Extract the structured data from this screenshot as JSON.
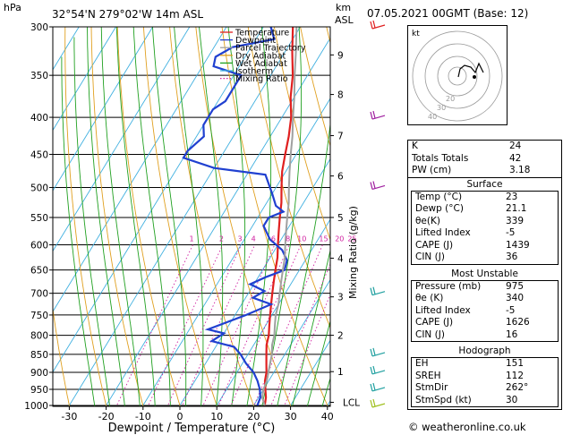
{
  "header": {
    "location": "32°54'N  279°02'W  14m  ASL",
    "hpa_label": "hPa",
    "km_label": "km",
    "asl_label": "ASL",
    "datetime": "07.05.2021  00GMT  (Base: 12)"
  },
  "chart_data": {
    "type": "line",
    "title": "32°54'N  279°02'W  14m  ASL",
    "xlabel": "Dewpoint / Temperature (°C)",
    "ylabel": "hPa",
    "right_ylabel": "Mixing Ratio (g/kg)",
    "xlim": [
      -35,
      40
    ],
    "ylim": [
      1000,
      300
    ],
    "x_ticks": [
      -30,
      -20,
      -10,
      0,
      10,
      20,
      30,
      40
    ],
    "pressure_ticks": [
      300,
      350,
      400,
      450,
      500,
      550,
      600,
      650,
      700,
      750,
      800,
      850,
      900,
      950,
      1000
    ],
    "km_ticks": [
      {
        "label": "9",
        "p": 328
      },
      {
        "label": "8",
        "p": 372
      },
      {
        "label": "7",
        "p": 424
      },
      {
        "label": "6",
        "p": 482
      },
      {
        "label": "5",
        "p": 550
      },
      {
        "label": "4",
        "p": 626
      },
      {
        "label": "3",
        "p": 708
      },
      {
        "label": "2",
        "p": 800
      },
      {
        "label": "1",
        "p": 898
      },
      {
        "label": "LCL",
        "p": 990
      }
    ],
    "mixing_ratio_labels": [
      "1",
      "2",
      "3",
      "4",
      "6",
      "8",
      "10",
      "15",
      "20",
      "25"
    ],
    "legend": [
      "Temperature",
      "Dewpoint",
      "Parcel Trajectory",
      "Dry Adiabat",
      "Wet Adiabat",
      "Isotherm",
      "Mixing Ratio"
    ],
    "legend_position": "top-center",
    "series": [
      {
        "name": "Temperature",
        "color": "#e02020",
        "points": [
          [
            23,
            1000
          ],
          [
            22,
            975
          ],
          [
            20.5,
            950
          ],
          [
            19,
            925
          ],
          [
            18,
            900
          ],
          [
            16.5,
            875
          ],
          [
            15,
            850
          ],
          [
            13.5,
            825
          ],
          [
            12.5,
            800
          ],
          [
            11,
            775
          ],
          [
            9.5,
            750
          ],
          [
            8,
            725
          ],
          [
            6.5,
            700
          ],
          [
            5,
            675
          ],
          [
            3.5,
            650
          ],
          [
            2,
            625
          ],
          [
            0,
            600
          ],
          [
            -2,
            575
          ],
          [
            -4,
            550
          ],
          [
            -6,
            525
          ],
          [
            -8.5,
            500
          ],
          [
            -11,
            475
          ],
          [
            -13,
            450
          ],
          [
            -15,
            425
          ],
          [
            -17.5,
            400
          ],
          [
            -21,
            375
          ],
          [
            -24,
            350
          ],
          [
            -28,
            325
          ],
          [
            -32,
            300
          ]
        ]
      },
      {
        "name": "Dewpoint",
        "color": "#2040d0",
        "points": [
          [
            21,
            1000
          ],
          [
            20.5,
            975
          ],
          [
            19,
            950
          ],
          [
            17,
            925
          ],
          [
            14.5,
            900
          ],
          [
            11,
            875
          ],
          [
            8,
            850
          ],
          [
            5,
            830
          ],
          [
            -2,
            815
          ],
          [
            0,
            795
          ],
          [
            -5,
            785
          ],
          [
            3,
            750
          ],
          [
            8,
            725
          ],
          [
            2,
            710
          ],
          [
            4,
            695
          ],
          [
            -1,
            680
          ],
          [
            2,
            665
          ],
          [
            6,
            650
          ],
          [
            5,
            630
          ],
          [
            2,
            610
          ],
          [
            -3,
            590
          ],
          [
            -7,
            565
          ],
          [
            -7,
            550
          ],
          [
            -4,
            540
          ],
          [
            -7,
            530
          ],
          [
            -10,
            510
          ],
          [
            -15,
            480
          ],
          [
            -30,
            470
          ],
          [
            -40,
            455
          ],
          [
            -40,
            445
          ],
          [
            -38,
            425
          ],
          [
            -40,
            410
          ],
          [
            -40,
            390
          ],
          [
            -38,
            380
          ],
          [
            -38,
            350
          ],
          [
            -47,
            340
          ],
          [
            -48,
            330
          ],
          [
            -45,
            320
          ],
          [
            -35,
            312
          ],
          [
            -38,
            300
          ]
        ]
      },
      {
        "name": "Parcel Trajectory",
        "color": "#a0a0a0",
        "points": [
          [
            23,
            1000
          ],
          [
            21,
            975
          ],
          [
            20,
            950
          ],
          [
            19.5,
            925
          ],
          [
            18.5,
            900
          ],
          [
            17.5,
            875
          ],
          [
            16.5,
            850
          ],
          [
            15,
            825
          ],
          [
            14,
            800
          ],
          [
            12.5,
            775
          ],
          [
            11,
            750
          ],
          [
            10,
            725
          ],
          [
            8.5,
            700
          ],
          [
            7,
            675
          ],
          [
            5.5,
            650
          ],
          [
            4,
            625
          ],
          [
            2,
            600
          ],
          [
            0,
            575
          ],
          [
            -2,
            550
          ],
          [
            -4,
            525
          ],
          [
            -6.5,
            500
          ],
          [
            -9,
            475
          ],
          [
            -11.5,
            450
          ],
          [
            -14,
            425
          ],
          [
            -17,
            400
          ],
          [
            -20,
            375
          ],
          [
            -23.5,
            350
          ],
          [
            -27,
            325
          ],
          [
            -31,
            300
          ]
        ]
      }
    ]
  },
  "right_panel": {
    "hodograph": {
      "label": "kt",
      "ring_labels": [
        "40",
        "30",
        "20"
      ]
    },
    "indices": [
      {
        "label": "K",
        "value": "24"
      },
      {
        "label": "Totals Totals",
        "value": "42"
      },
      {
        "label": "PW (cm)",
        "value": "3.18"
      }
    ],
    "surface": {
      "title": "Surface",
      "rows": [
        {
          "label": "Temp (°C)",
          "value": "23"
        },
        {
          "label": "Dewp (°C)",
          "value": "21.1"
        },
        {
          "label": "θe(K)",
          "value": "339"
        },
        {
          "label": "Lifted Index",
          "value": "-5"
        },
        {
          "label": "CAPE (J)",
          "value": "1439"
        },
        {
          "label": "CIN (J)",
          "value": "36"
        }
      ]
    },
    "most_unstable": {
      "title": "Most Unstable",
      "rows": [
        {
          "label": "Pressure (mb)",
          "value": "975"
        },
        {
          "label": "θe (K)",
          "value": "340"
        },
        {
          "label": "Lifted Index",
          "value": "-5"
        },
        {
          "label": "CAPE (J)",
          "value": "1626"
        },
        {
          "label": "CIN (J)",
          "value": "16"
        }
      ]
    },
    "hodograph_table": {
      "title": "Hodograph",
      "rows": [
        {
          "label": "EH",
          "value": "151"
        },
        {
          "label": "SREH",
          "value": "112"
        },
        {
          "label": "StmDir",
          "value": "262°"
        },
        {
          "label": "StmSpd (kt)",
          "value": "30"
        }
      ]
    }
  },
  "copyright": "© weatheronline.co.uk",
  "colors": {
    "temperature": "#e02020",
    "dewpoint": "#2040d0",
    "parcel": "#a0a0a0",
    "dry_adiabat": "#e0a020",
    "wet_adiabat": "#20a020",
    "isotherm": "#40b0e0",
    "mixing_ratio": "#d020a0"
  }
}
